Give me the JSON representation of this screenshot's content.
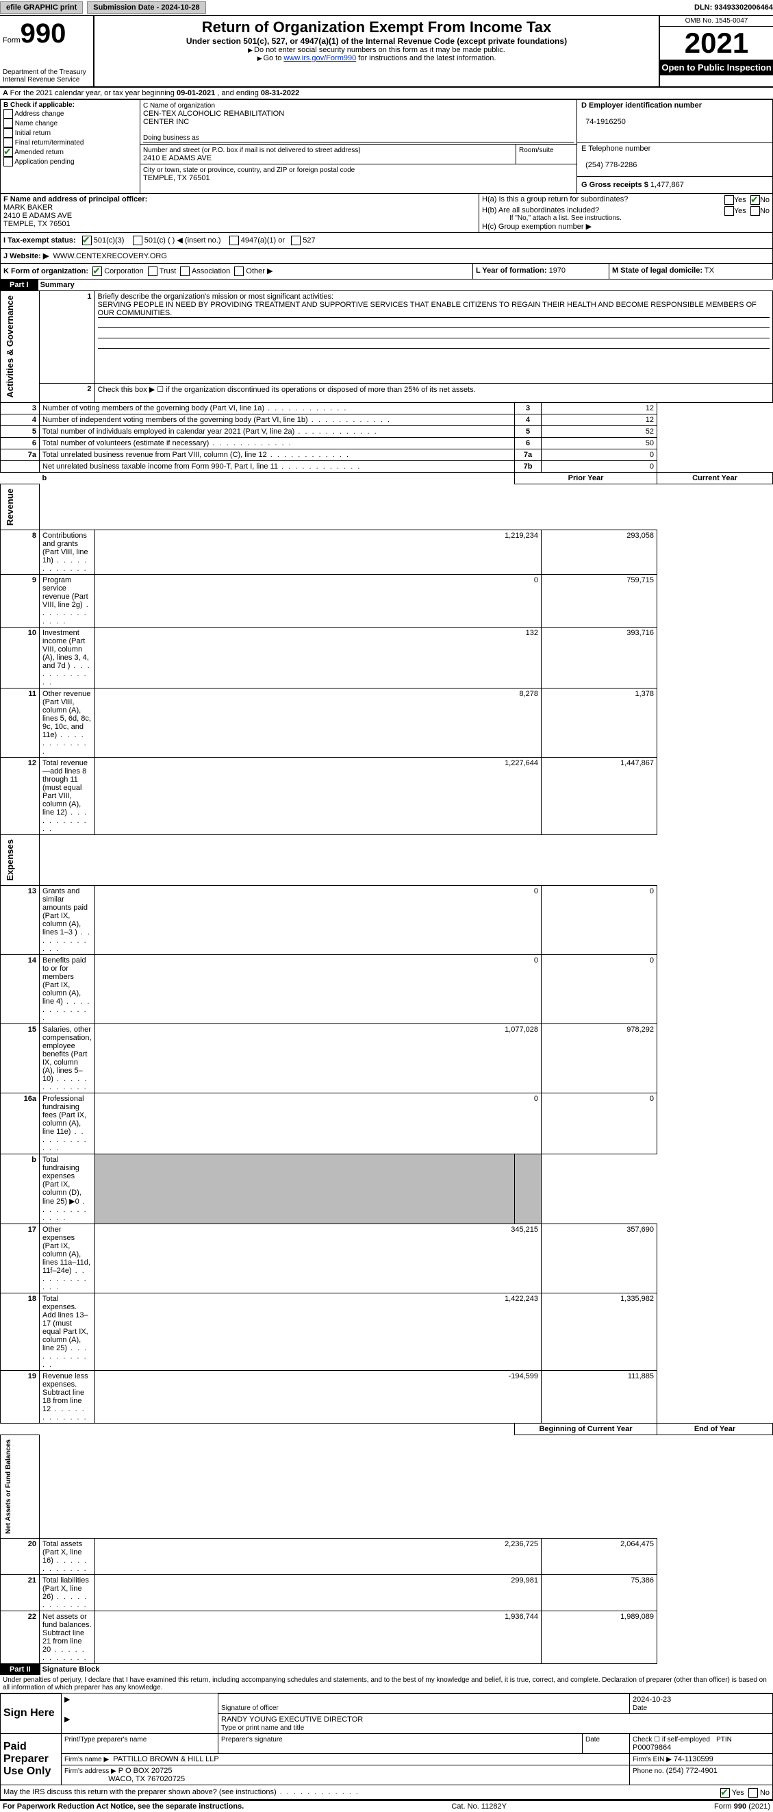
{
  "topbar": {
    "efile": "efile GRAPHIC print",
    "submission_label": "Submission Date - 2024-10-28",
    "dln_label": "DLN: 93493302006464"
  },
  "header": {
    "form_word": "Form",
    "form_num": "990",
    "dept": "Department of the Treasury",
    "irs": "Internal Revenue Service",
    "title": "Return of Organization Exempt From Income Tax",
    "subtitle": "Under section 501(c), 527, or 4947(a)(1) of the Internal Revenue Code (except private foundations)",
    "note1": "Do not enter social security numbers on this form as it may be made public.",
    "note2_pre": "Go to ",
    "note2_link": "www.irs.gov/Form990",
    "note2_post": " for instructions and the latest information.",
    "omb": "OMB No. 1545-0047",
    "year": "2021",
    "open": "Open to Public Inspection"
  },
  "lineA": {
    "pre": "For the 2021 calendar year, or tax year beginning ",
    "begin": "09-01-2021",
    "mid": "   , and ending ",
    "end": "08-31-2022"
  },
  "boxB": {
    "title": "B Check if applicable:",
    "items": [
      "Address change",
      "Name change",
      "Initial return",
      "Final return/terminated",
      "Amended return",
      "Application pending"
    ],
    "checked_idx": 4
  },
  "boxC": {
    "label": "C Name of organization",
    "name1": "CEN-TEX ALCOHOLIC REHABILITATION",
    "name2": "CENTER INC",
    "dba_label": "Doing business as",
    "addr_label": "Number and street (or P.O. box if mail is not delivered to street address)",
    "room_label": "Room/suite",
    "addr": "2410 E ADAMS AVE",
    "city_label": "City or town, state or province, country, and ZIP or foreign postal code",
    "city": "TEMPLE, TX  76501"
  },
  "boxD": {
    "label": "D Employer identification number",
    "value": "74-1916250"
  },
  "boxE": {
    "label": "E Telephone number",
    "value": "(254) 778-2286"
  },
  "boxG": {
    "label": "G Gross receipts $",
    "value": "1,477,867"
  },
  "boxF": {
    "label": "F Name and address of principal officer:",
    "name": "MARK BAKER",
    "addr": "2410 E ADAMS AVE",
    "city": "TEMPLE, TX  76501"
  },
  "boxH": {
    "ha": "H(a)  Is this a group return for subordinates?",
    "hb": "H(b)  Are all subordinates included?",
    "hb_note": "If \"No,\" attach a list. See instructions.",
    "hc": "H(c)  Group exemption number ▶",
    "yes": "Yes",
    "no": "No"
  },
  "boxI": {
    "label": "I   Tax-exempt status:",
    "o1": "501(c)(3)",
    "o2": "501(c) (  ) ◀ (insert no.)",
    "o3": "4947(a)(1) or",
    "o4": "527"
  },
  "boxJ": {
    "label": "J   Website: ▶",
    "value": "WWW.CENTEXRECOVERY.ORG"
  },
  "boxK": {
    "label": "K Form of organization:",
    "o1": "Corporation",
    "o2": "Trust",
    "o3": "Association",
    "o4": "Other ▶"
  },
  "boxL": {
    "label": "L Year of formation:",
    "value": "1970"
  },
  "boxM": {
    "label": "M State of legal domicile:",
    "value": "TX"
  },
  "part1": {
    "label": "Part I",
    "title": "Summary"
  },
  "summary": {
    "l1_label": "Briefly describe the organization's mission or most significant activities:",
    "l1_text": "SERVING PEOPLE IN NEED BY PROVIDING TREATMENT AND SUPPORTIVE SERVICES THAT ENABLE CITIZENS TO REGAIN THEIR HEALTH AND BECOME RESPONSIBLE MEMBERS OF OUR COMMUNITIES.",
    "l2": "Check this box ▶ ☐  if the organization discontinued its operations or disposed of more than 25% of its net assets.",
    "rows_ag": [
      {
        "n": "3",
        "t": "Number of voting members of the governing body (Part VI, line 1a)",
        "bn": "3",
        "v": "12"
      },
      {
        "n": "4",
        "t": "Number of independent voting members of the governing body (Part VI, line 1b)",
        "bn": "4",
        "v": "12"
      },
      {
        "n": "5",
        "t": "Total number of individuals employed in calendar year 2021 (Part V, line 2a)",
        "bn": "5",
        "v": "52"
      },
      {
        "n": "6",
        "t": "Total number of volunteers (estimate if necessary)",
        "bn": "6",
        "v": "50"
      },
      {
        "n": "7a",
        "t": "Total unrelated business revenue from Part VIII, column (C), line 12",
        "bn": "7a",
        "v": "0"
      },
      {
        "n": "",
        "t": "Net unrelated business taxable income from Form 990-T, Part I, line 11",
        "bn": "7b",
        "v": "0"
      }
    ],
    "col_prior": "Prior Year",
    "col_curr": "Current Year",
    "rows_rev": [
      {
        "n": "8",
        "t": "Contributions and grants (Part VIII, line 1h)",
        "p": "1,219,234",
        "c": "293,058"
      },
      {
        "n": "9",
        "t": "Program service revenue (Part VIII, line 2g)",
        "p": "0",
        "c": "759,715"
      },
      {
        "n": "10",
        "t": "Investment income (Part VIII, column (A), lines 3, 4, and 7d )",
        "p": "132",
        "c": "393,716"
      },
      {
        "n": "11",
        "t": "Other revenue (Part VIII, column (A), lines 5, 6d, 8c, 9c, 10c, and 11e)",
        "p": "8,278",
        "c": "1,378"
      },
      {
        "n": "12",
        "t": "Total revenue—add lines 8 through 11 (must equal Part VIII, column (A), line 12)",
        "p": "1,227,644",
        "c": "1,447,867"
      }
    ],
    "rows_exp": [
      {
        "n": "13",
        "t": "Grants and similar amounts paid (Part IX, column (A), lines 1–3 )",
        "p": "0",
        "c": "0"
      },
      {
        "n": "14",
        "t": "Benefits paid to or for members (Part IX, column (A), line 4)",
        "p": "0",
        "c": "0"
      },
      {
        "n": "15",
        "t": "Salaries, other compensation, employee benefits (Part IX, column (A), lines 5–10)",
        "p": "1,077,028",
        "c": "978,292"
      },
      {
        "n": "16a",
        "t": "Professional fundraising fees (Part IX, column (A), line 11e)",
        "p": "0",
        "c": "0"
      },
      {
        "n": "b",
        "t": "Total fundraising expenses (Part IX, column (D), line 25) ▶0",
        "p": "GREY",
        "c": "GREY"
      },
      {
        "n": "17",
        "t": "Other expenses (Part IX, column (A), lines 11a–11d, 11f–24e)",
        "p": "345,215",
        "c": "357,690"
      },
      {
        "n": "18",
        "t": "Total expenses. Add lines 13–17 (must equal Part IX, column (A), line 25)",
        "p": "1,422,243",
        "c": "1,335,982"
      },
      {
        "n": "19",
        "t": "Revenue less expenses. Subtract line 18 from line 12",
        "p": "-194,599",
        "c": "111,885"
      }
    ],
    "col_boy": "Beginning of Current Year",
    "col_eoy": "End of Year",
    "rows_net": [
      {
        "n": "20",
        "t": "Total assets (Part X, line 16)",
        "p": "2,236,725",
        "c": "2,064,475"
      },
      {
        "n": "21",
        "t": "Total liabilities (Part X, line 26)",
        "p": "299,981",
        "c": "75,386"
      },
      {
        "n": "22",
        "t": "Net assets or fund balances. Subtract line 21 from line 20",
        "p": "1,936,744",
        "c": "1,989,089"
      }
    ],
    "vlabels": {
      "ag": "Activities & Governance",
      "rev": "Revenue",
      "exp": "Expenses",
      "net": "Net Assets or Fund Balances"
    }
  },
  "part2": {
    "label": "Part II",
    "title": "Signature Block"
  },
  "sig": {
    "penalty": "Under penalties of perjury, I declare that I have examined this return, including accompanying schedules and statements, and to the best of my knowledge and belief, it is true, correct, and complete. Declaration of preparer (other than officer) is based on all information of which preparer has any knowledge.",
    "sign_here": "Sign Here",
    "sig_officer": "Signature of officer",
    "date": "2024-10-23",
    "date_label": "Date",
    "typed": "RANDY YOUNG  EXECUTIVE DIRECTOR",
    "typed_label": "Type or print name and title",
    "paid": "Paid Preparer Use Only",
    "pp_name_label": "Print/Type preparer's name",
    "pp_sig_label": "Preparer's signature",
    "pp_date_label": "Date",
    "pp_check": "Check ☐ if self-employed",
    "ptin_label": "PTIN",
    "ptin": "P00079864",
    "firm_name_label": "Firm's name   ▶",
    "firm_name": "PATTILLO BROWN & HILL LLP",
    "firm_ein_label": "Firm's EIN ▶",
    "firm_ein": "74-1130599",
    "firm_addr_label": "Firm's address ▶",
    "firm_addr1": "P O BOX 20725",
    "firm_addr2": "WACO, TX  767020725",
    "phone_label": "Phone no.",
    "phone": "(254) 772-4901",
    "discuss": "May the IRS discuss this return with the preparer shown above? (see instructions)",
    "yes": "Yes",
    "no": "No"
  },
  "footer": {
    "pra": "For Paperwork Reduction Act Notice, see the separate instructions.",
    "cat": "Cat. No. 11282Y",
    "form": "Form 990 (2021)"
  }
}
